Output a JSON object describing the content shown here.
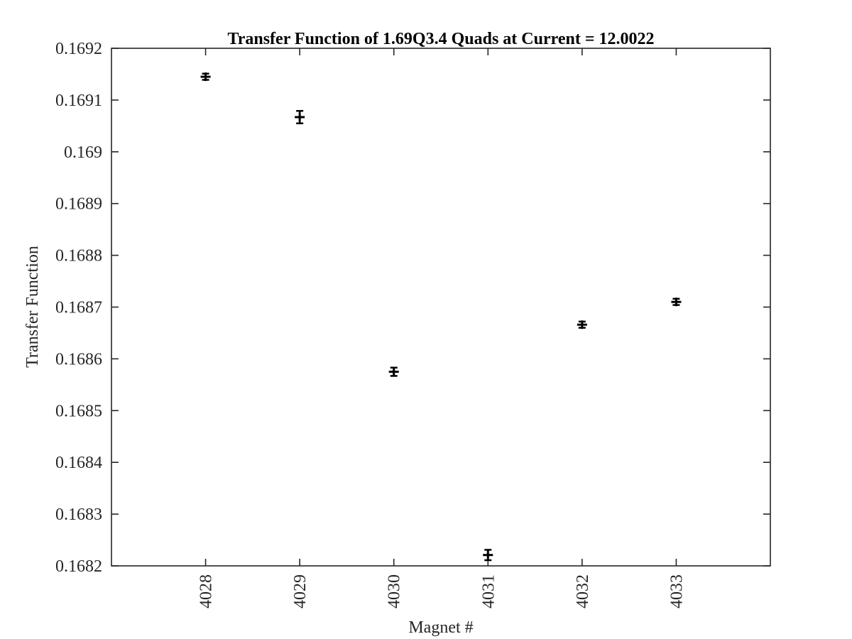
{
  "chart_data": {
    "type": "scatter",
    "title": "Transfer Function of 1.69Q3.4 Quads at Current  = 12.0022",
    "xlabel": "Magnet #",
    "ylabel": "Transfer Function",
    "x_categories": [
      "4028",
      "4029",
      "4030",
      "4031",
      "4032",
      "4033"
    ],
    "xlim": [
      4027,
      4034
    ],
    "ylim": [
      0.1682,
      0.1692
    ],
    "y_ticks": [
      "0.1682",
      "0.1683",
      "0.1684",
      "0.1685",
      "0.1686",
      "0.1687",
      "0.1688",
      "0.1689",
      "0.169",
      "0.1691",
      "0.1692"
    ],
    "series": [
      {
        "marker": "+",
        "color": "#000000",
        "points": [
          {
            "x": 4028,
            "y": 0.169145,
            "err": 6e-06
          },
          {
            "x": 4029,
            "y": 0.169067,
            "err": 1.2e-05
          },
          {
            "x": 4030,
            "y": 0.168575,
            "err": 8e-06
          },
          {
            "x": 4031,
            "y": 0.168221,
            "err": 1e-05
          },
          {
            "x": 4032,
            "y": 0.168666,
            "err": 6e-06
          },
          {
            "x": 4033,
            "y": 0.16871,
            "err": 6e-06
          }
        ]
      }
    ],
    "grid": false,
    "box": true
  }
}
